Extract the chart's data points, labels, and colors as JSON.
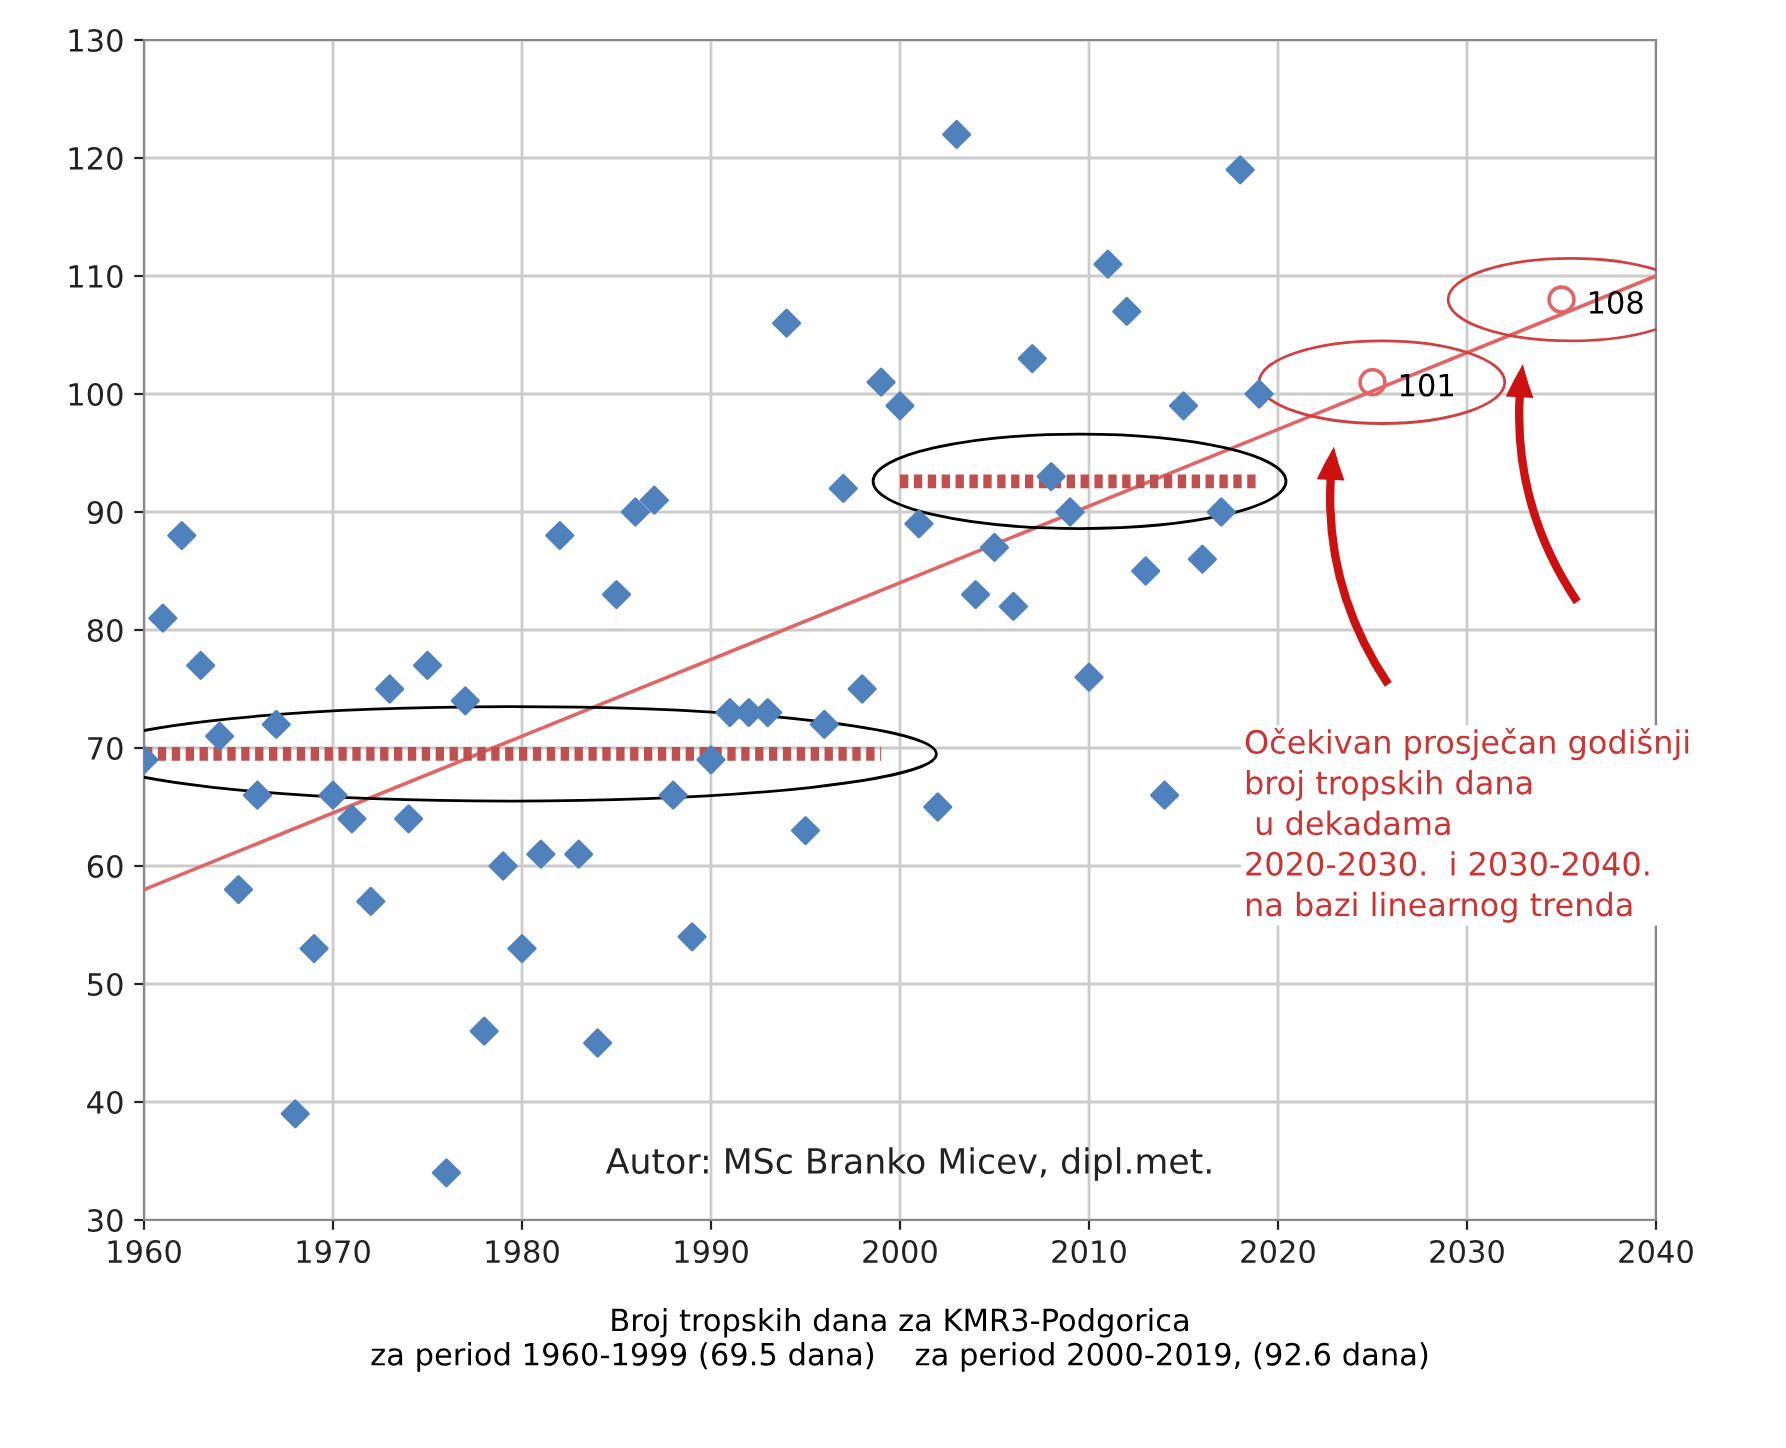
{
  "chart_data": {
    "type": "scatter",
    "xlabel": "Broj tropskih dana za KMR3-Podgorica\nza period 1960-1999 (69.5 dana)    za period 2000-2019, (92.6 dana)",
    "xlim": [
      1960,
      2040
    ],
    "xticks": [
      1960,
      1970,
      1980,
      1990,
      2000,
      2010,
      2020,
      2030,
      2040
    ],
    "ylim": [
      30,
      130
    ],
    "yticks": [
      30,
      40,
      50,
      60,
      70,
      80,
      90,
      100,
      110,
      120,
      130
    ],
    "grid": true,
    "series": [
      {
        "marker": "diamond",
        "color": "#4f81bd",
        "x": [
          1960,
          1961,
          1962,
          1963,
          1964,
          1965,
          1966,
          1967,
          1968,
          1969,
          1970,
          1971,
          1972,
          1973,
          1974,
          1975,
          1976,
          1977,
          1978,
          1979,
          1980,
          1981,
          1982,
          1983,
          1984,
          1985,
          1986,
          1987,
          1988,
          1989,
          1990,
          1991,
          1992,
          1993,
          1994,
          1995,
          1996,
          1997,
          1998,
          1999,
          2000,
          2001,
          2002,
          2003,
          2004,
          2005,
          2006,
          2007,
          2008,
          2009,
          2010,
          2011,
          2012,
          2013,
          2014,
          2015,
          2016,
          2017,
          2018,
          2019
        ],
        "values": [
          69,
          81,
          88,
          77,
          71,
          58,
          66,
          72,
          39,
          53,
          66,
          64,
          57,
          75,
          64,
          77,
          34,
          74,
          46,
          60,
          53,
          61,
          88,
          61,
          45,
          83,
          90,
          91,
          66,
          54,
          69,
          73,
          73,
          73,
          106,
          63,
          72,
          92,
          75,
          101,
          99,
          89,
          65,
          122,
          83,
          87,
          82,
          103,
          93,
          90,
          76,
          111,
          107,
          85,
          66,
          99,
          86,
          90,
          119,
          100
        ]
      },
      {
        "type": "line",
        "marker": "none",
        "line_style": "solid",
        "color": "#e06666",
        "x": [
          1960,
          2040
        ],
        "values": [
          58,
          110
        ]
      },
      {
        "type": "line",
        "marker": "none",
        "line_style": "dotted",
        "color": "#c0504d",
        "x": [
          1960,
          1999
        ],
        "values": [
          69.5,
          69.5
        ]
      },
      {
        "type": "line",
        "marker": "none",
        "line_style": "dotted",
        "color": "#c0504d",
        "x": [
          2000,
          2019
        ],
        "values": [
          92.6,
          92.6
        ]
      },
      {
        "type": "scatter",
        "marker": "circle",
        "color": "#e06666",
        "x": [
          2025,
          2035
        ],
        "values": [
          101,
          108
        ],
        "value_labels": [
          "101",
          "108"
        ]
      }
    ],
    "annotations": [
      "Autor: MSc Branko Micev, dipl.met.",
      "Očekivan prosječan godišnji\nbroj tropskih dana\n u dekadama\n2020-2030.  i 2030-2040.\nna bazi linearnog trenda"
    ]
  }
}
